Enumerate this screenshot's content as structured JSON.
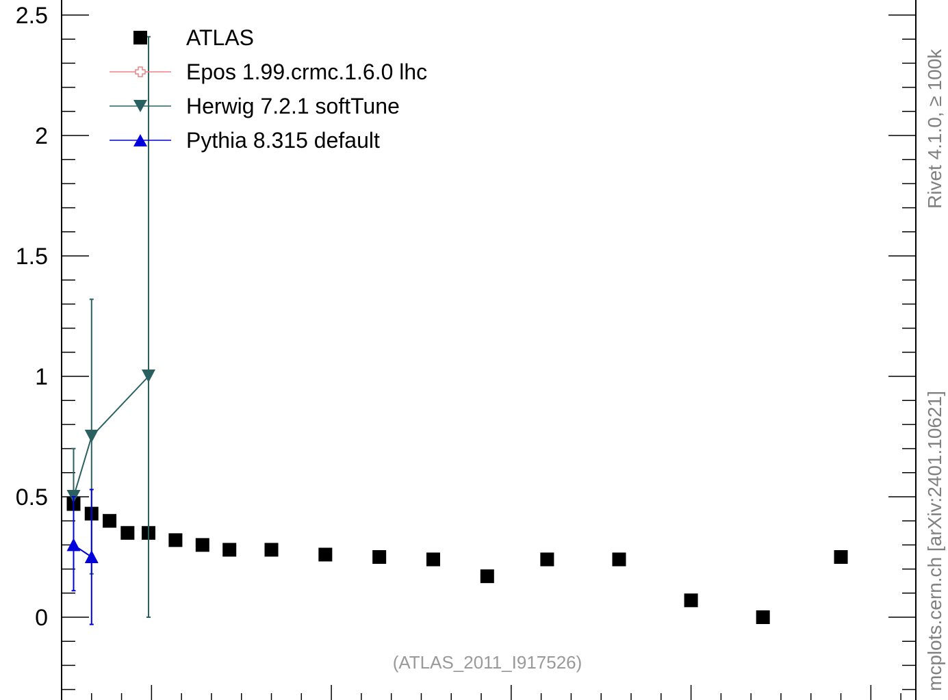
{
  "chart_data": {
    "type": "scatter",
    "ylim": [
      -0.3,
      2.55
    ],
    "xlim": [
      1,
      15.25
    ],
    "yticks": [
      {
        "value": 0,
        "label": "0"
      },
      {
        "value": 0.5,
        "label": "0.5"
      },
      {
        "value": 1,
        "label": "1"
      },
      {
        "value": 1.5,
        "label": "1.5"
      },
      {
        "value": 2,
        "label": "2"
      },
      {
        "value": 2.5,
        "label": "2.5"
      }
    ],
    "series": [
      {
        "name": "ATLAS",
        "color": "#000000",
        "marker": "square",
        "x": [
          1.2,
          1.5,
          1.8,
          2.1,
          2.45,
          2.9,
          3.35,
          3.8,
          4.5,
          5.4,
          6.3,
          7.2,
          8.1,
          9.1,
          10.3,
          11.5,
          12.7,
          14.0
        ],
        "y": [
          0.47,
          0.43,
          0.4,
          0.35,
          0.35,
          0.32,
          0.3,
          0.28,
          0.28,
          0.26,
          0.25,
          0.24,
          0.17,
          0.24,
          0.24,
          0.07,
          0.0,
          0.25
        ]
      },
      {
        "name": "Epos 1.99.crmc.1.6.0 lhc",
        "color": "#f08080",
        "marker": "open-cross",
        "x": [],
        "y": []
      },
      {
        "name": "Herwig 7.2.1 softTune",
        "color": "#2a6060",
        "marker": "triangle-down",
        "x": [
          1.2,
          1.5,
          2.45
        ],
        "y": [
          0.5,
          0.75,
          1.0
        ],
        "yerr_low": [
          0.0,
          0.57,
          1.0
        ],
        "yerr_high": [
          0.2,
          0.57,
          1.41
        ]
      },
      {
        "name": "Pythia 8.315 default",
        "color": "#0000dd",
        "marker": "triangle-up",
        "x": [
          1.2,
          1.5
        ],
        "y": [
          0.3,
          0.25
        ],
        "yerr_low": [
          0.19,
          0.28
        ],
        "yerr_high": [
          0.2,
          0.28
        ]
      }
    ]
  },
  "side_label": "mcplots.cern.ch [arXiv:2401.10621]",
  "side_label_top": "Rivet 4.1.0, ≥ 100k",
  "analysis_label": "(ATLAS_2011_I917526)"
}
